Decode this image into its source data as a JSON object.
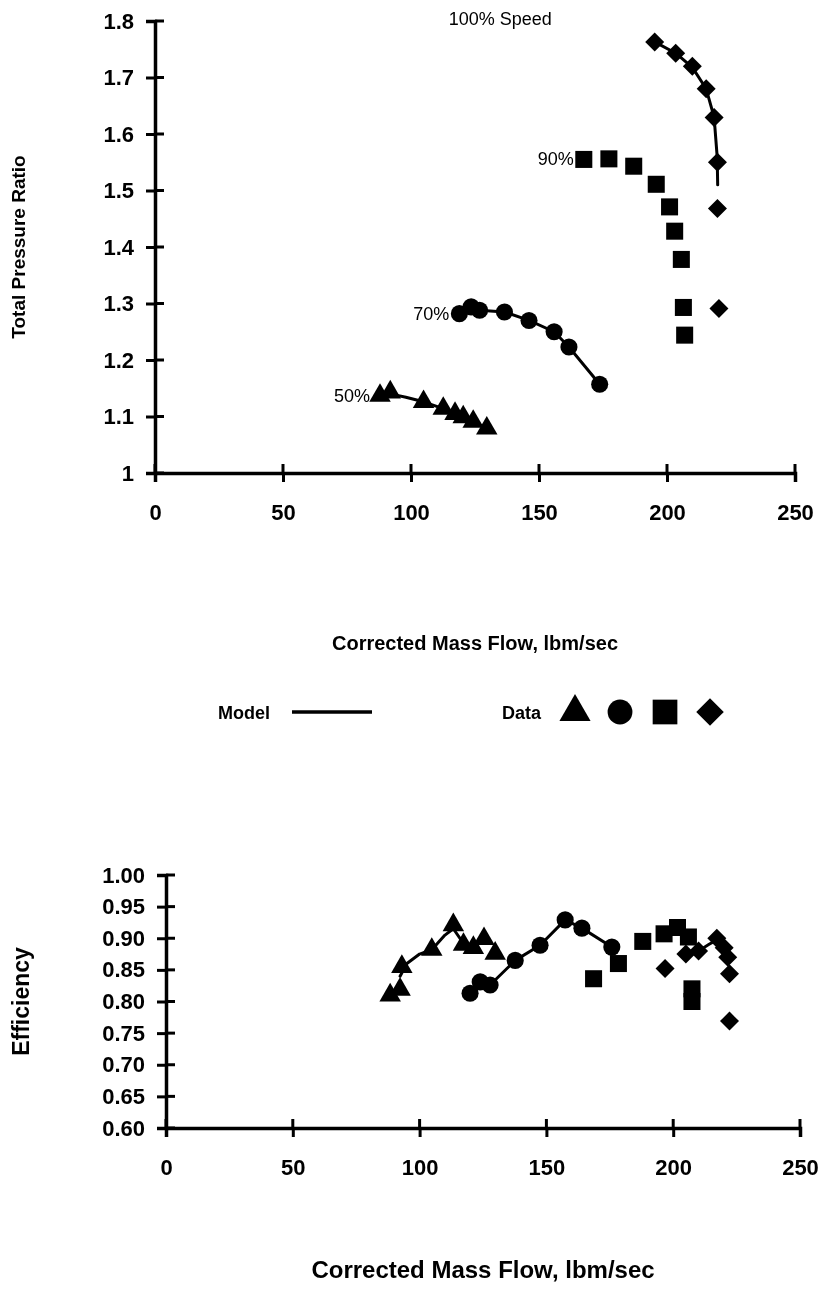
{
  "chart_data": [
    {
      "type": "scatter",
      "xlabel": "Corrected Mass Flow, lbm/sec",
      "ylabel": "Total Pressure Ratio",
      "xlim": [
        0,
        250
      ],
      "ylim": [
        1,
        1.8
      ],
      "xticks": [
        0,
        50,
        100,
        150,
        200,
        250
      ],
      "yticks": [
        1,
        1.1,
        1.2,
        1.3,
        1.4,
        1.5,
        1.6,
        1.7,
        1.8
      ],
      "legend": "bottom",
      "series": [
        {
          "name": "Model",
          "type": "line",
          "color": "#000000",
          "line_style": "solid",
          "x": [
            87.9,
            91.9,
            98,
            104.9,
            112.6,
            117.2,
            120.4,
            124.3,
            129.6,
            null,
            118.9,
            123.5,
            126.8,
            136.5,
            146.1,
            155.9,
            161.7,
            173.7,
            null,
            195.2,
            203.4,
            209.9,
            215.3,
            218.4,
            219.6,
            219.8
          ],
          "values": [
            1.137,
            1.14,
            1.134,
            1.126,
            1.114,
            1.105,
            1.099,
            1.091,
            1.079,
            null,
            1.282,
            1.29,
            1.288,
            1.285,
            1.27,
            1.25,
            1.223,
            1.157,
            null,
            1.763,
            1.743,
            1.718,
            1.68,
            1.63,
            1.56,
            1.51
          ]
        },
        {
          "name": "Data",
          "marker": "triangle",
          "color": "#000000",
          "x": [
            87.9,
            91.9,
            104.9,
            112.6,
            117.2,
            120.4,
            124.3,
            129.6
          ],
          "values": [
            1.137,
            1.143,
            1.126,
            1.114,
            1.105,
            1.099,
            1.091,
            1.079
          ]
        },
        {
          "marker": "circle",
          "color": "#000000",
          "x": [
            118.9,
            123.5,
            126.8,
            136.5,
            146.1,
            155.9,
            161.7,
            173.7
          ],
          "values": [
            1.282,
            1.294,
            1.288,
            1.285,
            1.27,
            1.25,
            1.223,
            1.157
          ]
        },
        {
          "marker": "square",
          "color": "#000000",
          "x": [
            167.5,
            177.3,
            187,
            195.8,
            201,
            203,
            205.6,
            206.4,
            206.9
          ],
          "values": [
            1.555,
            1.556,
            1.543,
            1.511,
            1.471,
            1.428,
            1.378,
            1.293,
            1.244
          ]
        },
        {
          "marker": "diamond",
          "color": "#000000",
          "x": [
            195.2,
            203.4,
            209.9,
            215.3,
            218.4,
            219.7,
            219.7,
            220.3
          ],
          "values": [
            1.763,
            1.743,
            1.72,
            1.68,
            1.629,
            1.55,
            1.468,
            1.291
          ]
        }
      ],
      "annotations": [
        "100% Speed",
        {
          "text": "90%",
          "x": 167.5,
          "y": 1.555
        },
        {
          "text": "70%",
          "x": 118.9,
          "y": 1.282
        },
        {
          "text": "50%",
          "x": 87.9,
          "y": 1.137
        }
      ]
    },
    {
      "type": "scatter",
      "xlabel": "Corrected Mass Flow, lbm/sec",
      "ylabel": "Efficiency",
      "xlim": [
        0,
        250
      ],
      "ylim": [
        0.6,
        1
      ],
      "xticks": [
        0,
        50,
        100,
        150,
        200,
        250
      ],
      "yticks": [
        {
          "value": 0.6,
          "label": "0.60"
        },
        0.65,
        {
          "value": 0.7,
          "label": "0.70"
        },
        0.75,
        {
          "value": 0.8,
          "label": "0.80"
        },
        0.85,
        {
          "value": 0.9,
          "label": "0.90"
        },
        0.95,
        {
          "value": 1,
          "label": "1.00"
        }
      ],
      "series": [
        {
          "type": "line",
          "color": "#000000",
          "line_style": "solid",
          "x": [
            92.3,
            95,
            100,
            104.8,
            110,
            113.3,
            117.3,
            121.2,
            null,
            123.9,
            127.8,
            137.7,
            147.5,
            157.4,
            164,
            175.8,
            null,
            205,
            210,
            214,
            217,
            221
          ],
          "values": [
            0.84,
            0.86,
            0.875,
            0.882,
            0.905,
            0.915,
            0.892,
            0.885,
            null,
            0.831,
            0.826,
            0.865,
            0.889,
            0.929,
            0.916,
            0.886,
            null,
            0.87,
            0.88,
            0.89,
            0.897,
            0.875
          ]
        },
        {
          "marker": "triangle",
          "color": "#000000",
          "x": [
            88.4,
            92.3,
            93,
            104.8,
            113.3,
            117.3,
            121.2,
            125.4,
            129.8
          ],
          "values": [
            0.81,
            0.819,
            0.855,
            0.882,
            0.921,
            0.89,
            0.885,
            0.899,
            0.876
          ]
        },
        {
          "marker": "circle",
          "color": "#000000",
          "x": [
            119.9,
            123.9,
            127.8,
            137.7,
            147.5,
            157.4,
            164,
            175.8
          ],
          "values": [
            0.813,
            0.831,
            0.826,
            0.865,
            0.889,
            0.929,
            0.916,
            0.886
          ]
        },
        {
          "marker": "square",
          "color": "#000000",
          "x": [
            168.6,
            178.4,
            188,
            196.4,
            201.7,
            206,
            207.4,
            207.4
          ],
          "values": [
            0.836,
            0.86,
            0.895,
            0.907,
            0.917,
            0.902,
            0.82,
            0.8
          ]
        },
        {
          "marker": "diamond",
          "color": "#000000",
          "x": [
            196.8,
            205,
            210,
            217.2,
            220.1,
            221.5,
            222.2,
            222.2
          ],
          "values": [
            0.852,
            0.875,
            0.88,
            0.9,
            0.885,
            0.87,
            0.844,
            0.769
          ]
        }
      ]
    }
  ]
}
